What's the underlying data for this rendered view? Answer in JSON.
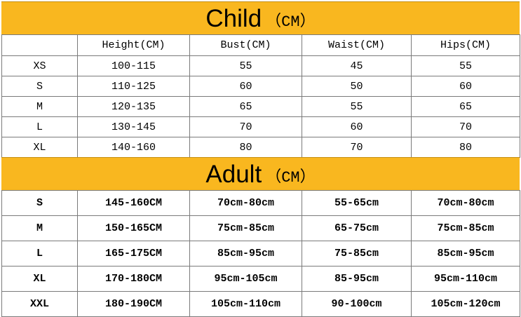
{
  "child": {
    "title": "Child",
    "unit": "（CM）",
    "headers": [
      "",
      "Height(CM)",
      "Bust(CM)",
      "Waist(CM)",
      "Hips(CM)"
    ],
    "rows": [
      [
        "XS",
        "100-115",
        "55",
        "45",
        "55"
      ],
      [
        "S",
        "110-125",
        "60",
        "50",
        "60"
      ],
      [
        "M",
        "120-135",
        "65",
        "55",
        "65"
      ],
      [
        "L",
        "130-145",
        "70",
        "60",
        "70"
      ],
      [
        "XL",
        "140-160",
        "80",
        "70",
        "80"
      ]
    ]
  },
  "adult": {
    "title": "Adult",
    "unit": "（CM）",
    "rows": [
      [
        "S",
        "145-160CM",
        "70cm-80cm",
        "55-65cm",
        "70cm-80cm"
      ],
      [
        "M",
        "150-165CM",
        "75cm-85cm",
        "65-75cm",
        "75cm-85cm"
      ],
      [
        "L",
        "165-175CM",
        "85cm-95cm",
        "75-85cm",
        "85cm-95cm"
      ],
      [
        "XL",
        "170-180CM",
        "95cm-105cm",
        "85-95cm",
        "95cm-110cm"
      ],
      [
        "XXL",
        "180-190CM",
        "105cm-110cm",
        "90-100cm",
        "105cm-120cm"
      ]
    ]
  },
  "colors": {
    "banner": "#f9b71f",
    "grid": "#7a7a7a"
  }
}
